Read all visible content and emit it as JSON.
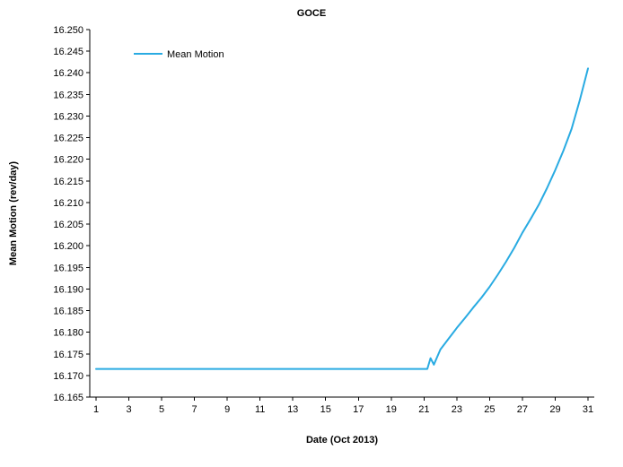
{
  "chart": {
    "title": "GOCE",
    "xlabel": "Date (Oct 2013)",
    "ylabel": "Mean Motion (rev/day)",
    "legend_label": "Mean Motion"
  },
  "chart_data": {
    "type": "line",
    "title": "GOCE",
    "xlabel": "Date (Oct 2013)",
    "ylabel": "Mean Motion (rev/day)",
    "xlim": [
      1,
      31
    ],
    "ylim": [
      16.165,
      16.25
    ],
    "x_ticks": [
      1,
      3,
      5,
      7,
      9,
      11,
      13,
      15,
      17,
      19,
      21,
      23,
      25,
      27,
      29,
      31
    ],
    "y_ticks": [
      16.165,
      16.17,
      16.175,
      16.18,
      16.185,
      16.19,
      16.195,
      16.2,
      16.205,
      16.21,
      16.215,
      16.22,
      16.225,
      16.23,
      16.235,
      16.24,
      16.245,
      16.25
    ],
    "grid": false,
    "legend_position": "top-left-inside",
    "line_color": "#29ABE2",
    "axis_color": "#000000",
    "series": [
      {
        "name": "Mean Motion",
        "x": [
          1,
          2,
          3,
          4,
          5,
          6,
          7,
          8,
          9,
          10,
          11,
          12,
          13,
          14,
          15,
          16,
          17,
          18,
          19,
          20,
          21,
          21.2,
          21.4,
          21.6,
          22,
          22.5,
          23,
          23.5,
          24,
          24.5,
          25,
          25.5,
          26,
          26.5,
          27,
          27.5,
          28,
          28.5,
          29,
          29.5,
          30,
          30.5,
          31
        ],
        "y": [
          16.1715,
          16.1715,
          16.1715,
          16.1715,
          16.1715,
          16.1715,
          16.1715,
          16.1715,
          16.1715,
          16.1715,
          16.1715,
          16.1715,
          16.1715,
          16.1715,
          16.1715,
          16.1715,
          16.1715,
          16.1715,
          16.1715,
          16.1715,
          16.1715,
          16.1715,
          16.174,
          16.1725,
          16.176,
          16.1785,
          16.181,
          16.1833,
          16.1857,
          16.188,
          16.1905,
          16.1933,
          16.1963,
          16.1995,
          16.203,
          16.2062,
          16.2095,
          16.2133,
          16.2175,
          16.222,
          16.227,
          16.2337,
          16.241
        ]
      }
    ]
  }
}
